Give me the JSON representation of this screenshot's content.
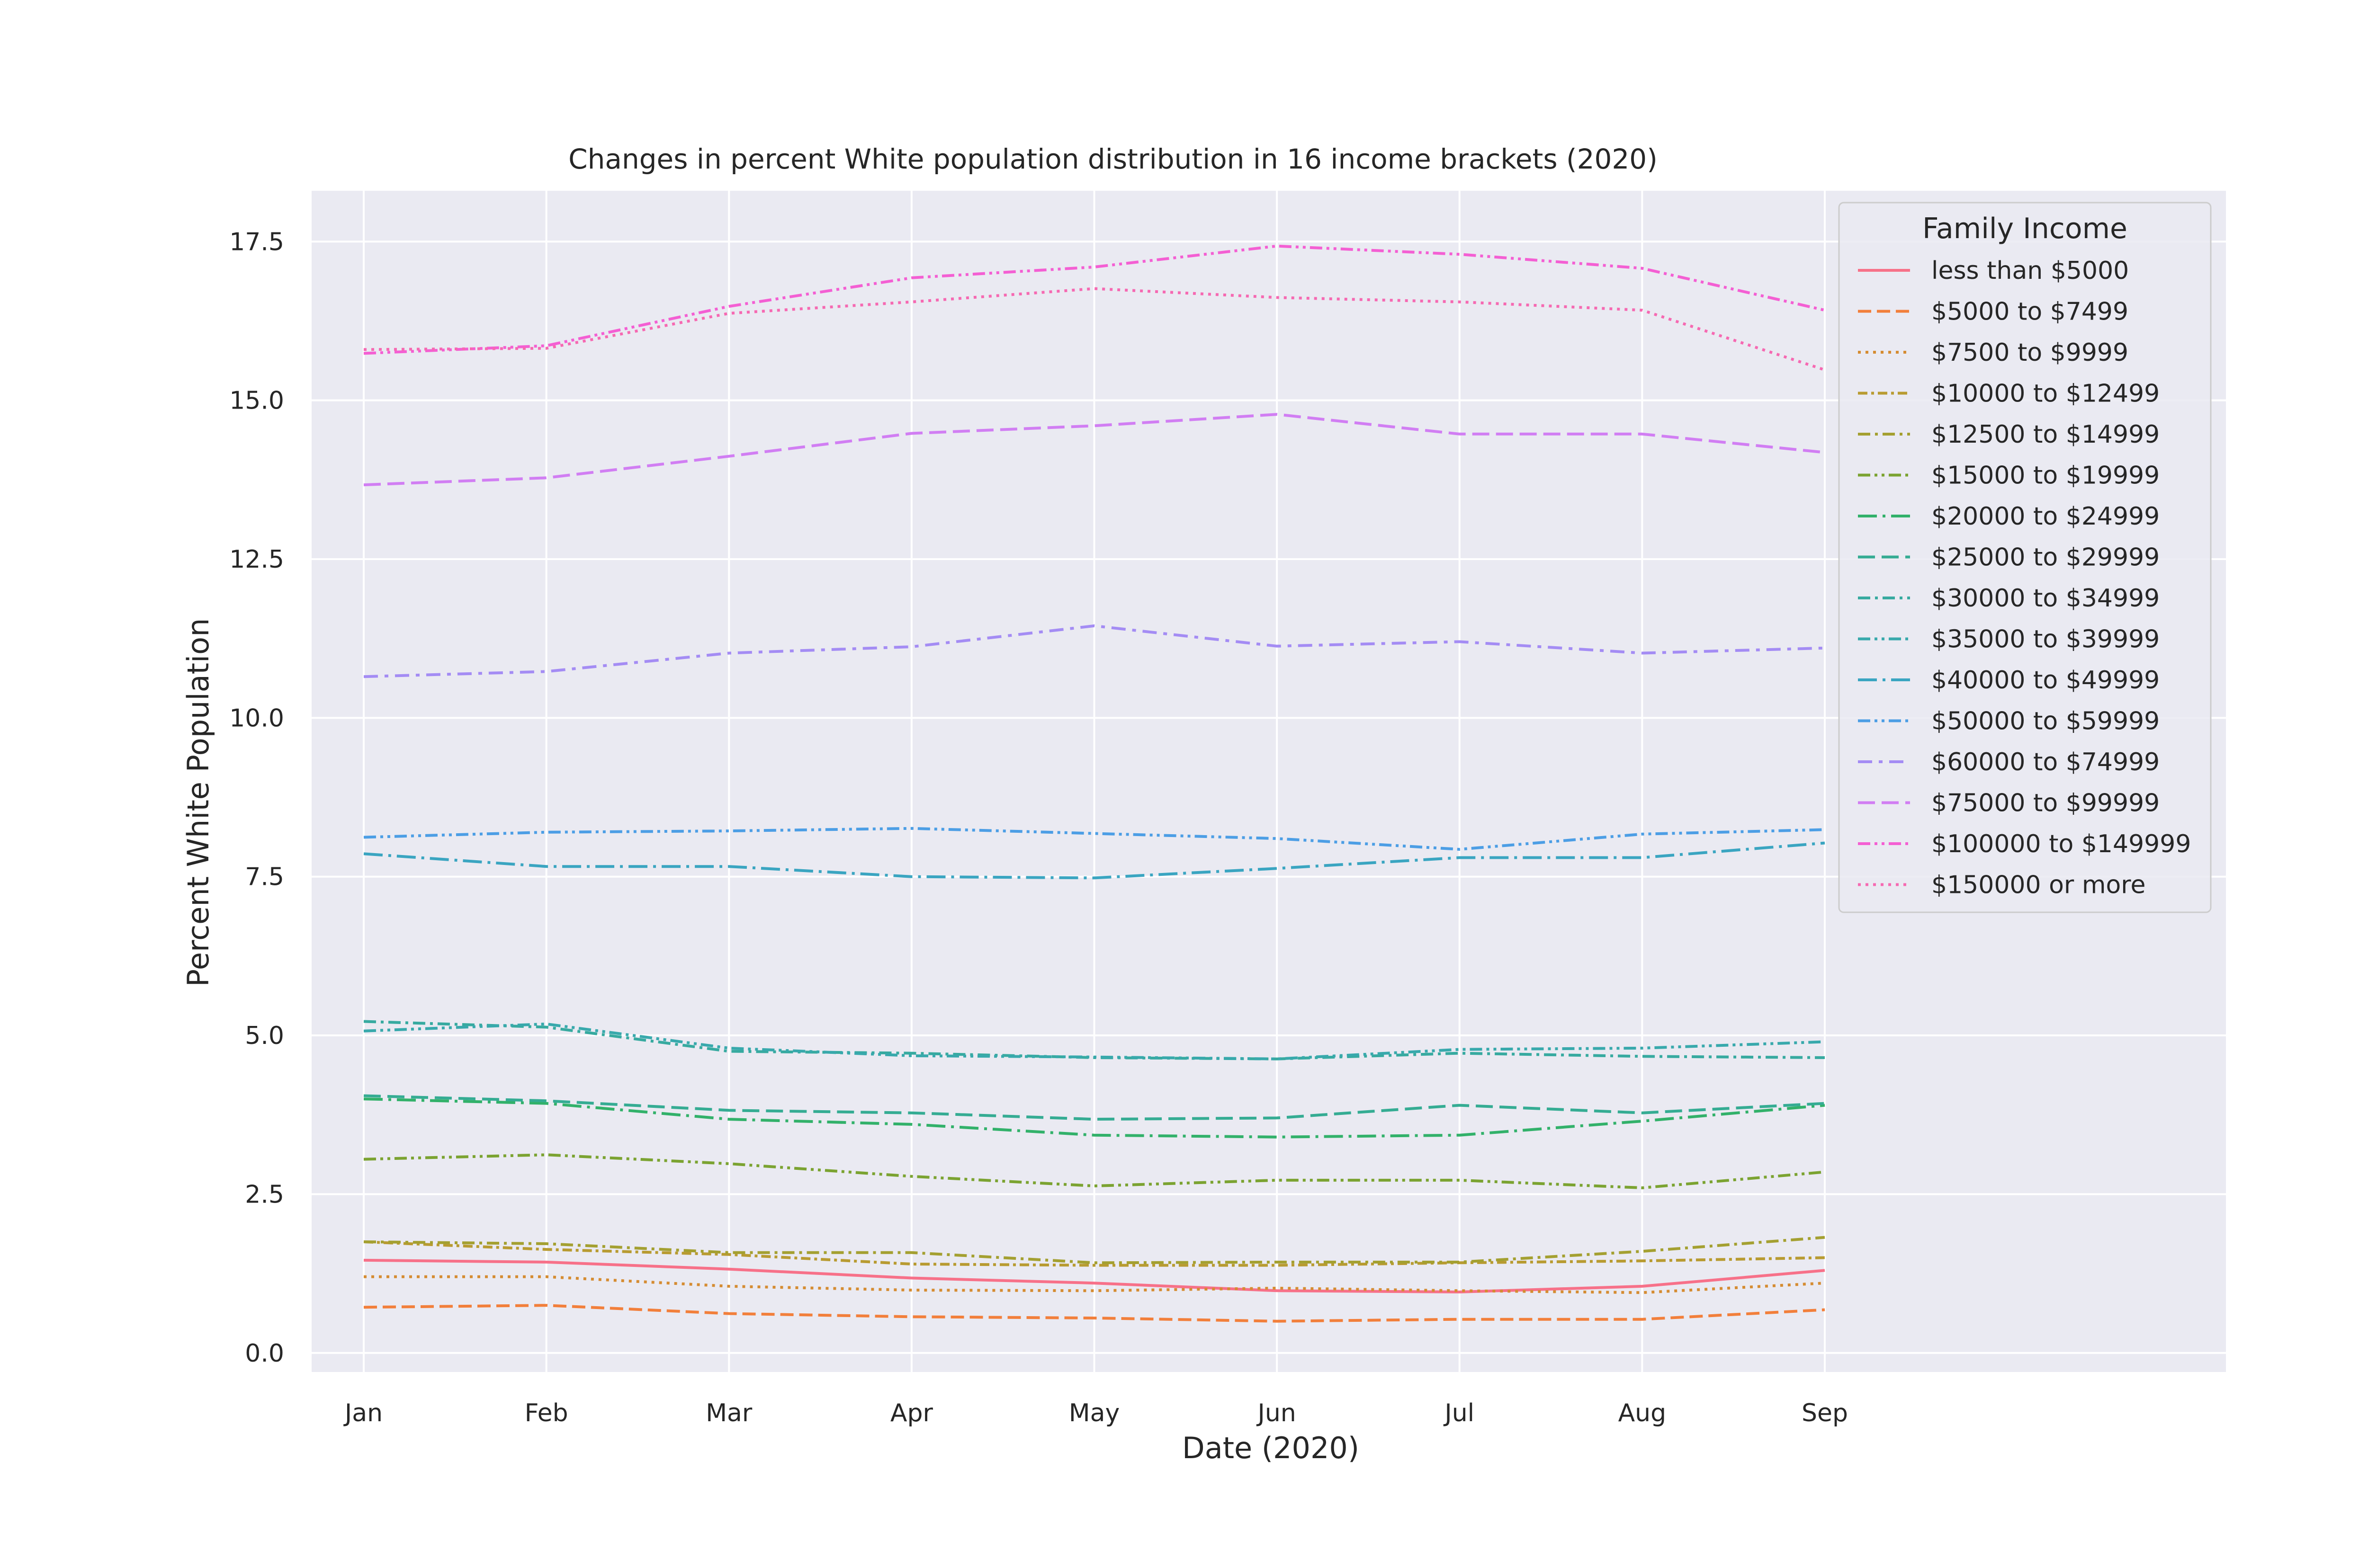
{
  "chart_data": {
    "type": "line",
    "title": "Changes in percent White population distribution in 16 income brackets (2020)",
    "xlabel": "Date (2020)",
    "ylabel": "Percent White Population",
    "categories": [
      "Jan",
      "Feb",
      "Mar",
      "Apr",
      "May",
      "Jun",
      "Jul",
      "Aug",
      "Sep"
    ],
    "ylim": [
      -0.3,
      18.3
    ],
    "yticks": [
      0.0,
      2.5,
      5.0,
      7.5,
      10.0,
      12.5,
      15.0,
      17.5
    ],
    "ytick_labels": [
      "0.0",
      "2.5",
      "5.0",
      "7.5",
      "10.0",
      "12.5",
      "15.0",
      "17.5"
    ],
    "grid": true,
    "legend_title": "Family Income",
    "legend_position": "upper-right",
    "series": [
      {
        "name": "less than $5000",
        "color": "#f77189",
        "dash": "solid",
        "values": [
          1.46,
          1.43,
          1.32,
          1.18,
          1.1,
          0.98,
          0.96,
          1.05,
          1.3
        ]
      },
      {
        "name": "$5000 to $7499",
        "color": "#f27f3b",
        "dash": "dash",
        "values": [
          0.72,
          0.75,
          0.62,
          0.57,
          0.55,
          0.5,
          0.53,
          0.53,
          0.68
        ]
      },
      {
        "name": "$7500 to $9999",
        "color": "#d58c32",
        "dash": "dot",
        "values": [
          1.2,
          1.2,
          1.05,
          0.99,
          0.98,
          1.02,
          0.98,
          0.95,
          1.1
        ]
      },
      {
        "name": "$10000 to $12499",
        "color": "#b89b31",
        "dash": "dashdot-fine",
        "values": [
          1.75,
          1.63,
          1.55,
          1.4,
          1.38,
          1.38,
          1.42,
          1.45,
          1.5
        ]
      },
      {
        "name": "$12500 to $14999",
        "color": "#a4a031",
        "dash": "dashdot",
        "values": [
          1.75,
          1.72,
          1.58,
          1.58,
          1.42,
          1.43,
          1.43,
          1.6,
          1.82
        ]
      },
      {
        "name": "$15000 to $19999",
        "color": "#7ba331",
        "dash": "dashdotdot",
        "values": [
          3.05,
          3.12,
          2.98,
          2.78,
          2.63,
          2.72,
          2.72,
          2.6,
          2.85
        ]
      },
      {
        "name": "$20000 to $24999",
        "color": "#32b16a",
        "dash": "longdashdot",
        "values": [
          4.0,
          3.93,
          3.68,
          3.6,
          3.43,
          3.4,
          3.43,
          3.65,
          3.9
        ]
      },
      {
        "name": "$25000 to $29999",
        "color": "#35ac93",
        "dash": "dashed-long",
        "values": [
          4.05,
          3.97,
          3.82,
          3.78,
          3.68,
          3.7,
          3.9,
          3.78,
          3.93
        ]
      },
      {
        "name": "$30000 to $34999",
        "color": "#37aaa0",
        "dash": "dashdot",
        "values": [
          5.22,
          5.13,
          4.75,
          4.72,
          4.65,
          4.63,
          4.72,
          4.67,
          4.65
        ]
      },
      {
        "name": "$35000 to $39999",
        "color": "#38a9ac",
        "dash": "dashdotdot",
        "values": [
          5.07,
          5.18,
          4.8,
          4.68,
          4.66,
          4.63,
          4.78,
          4.8,
          4.9
        ]
      },
      {
        "name": "$40000 to $49999",
        "color": "#3aa5c1",
        "dash": "longdashdot",
        "values": [
          7.86,
          7.66,
          7.66,
          7.5,
          7.48,
          7.63,
          7.8,
          7.8,
          8.03
        ]
      },
      {
        "name": "$50000 to $59999",
        "color": "#4c9ee5",
        "dash": "dashdotdot",
        "values": [
          8.12,
          8.2,
          8.22,
          8.26,
          8.18,
          8.1,
          7.93,
          8.17,
          8.24
        ]
      },
      {
        "name": "$60000 to $74999",
        "color": "#a48cf4",
        "dash": "dashdot-loose",
        "values": [
          10.65,
          10.73,
          11.02,
          11.12,
          11.45,
          11.13,
          11.2,
          11.02,
          11.1
        ]
      },
      {
        "name": "$75000 to $99999",
        "color": "#d17ef3",
        "dash": "dashed-long",
        "values": [
          13.67,
          13.78,
          14.12,
          14.48,
          14.6,
          14.78,
          14.47,
          14.47,
          14.18
        ]
      },
      {
        "name": "$100000 to $149999",
        "color": "#f45fd3",
        "dash": "dashdotdot",
        "values": [
          15.74,
          15.86,
          16.48,
          16.93,
          17.1,
          17.43,
          17.3,
          17.08,
          16.42
        ]
      },
      {
        "name": "$150000 or more",
        "color": "#f669b2",
        "dash": "dot",
        "values": [
          15.8,
          15.82,
          16.37,
          16.55,
          16.76,
          16.62,
          16.55,
          16.42,
          15.48
        ]
      }
    ]
  }
}
